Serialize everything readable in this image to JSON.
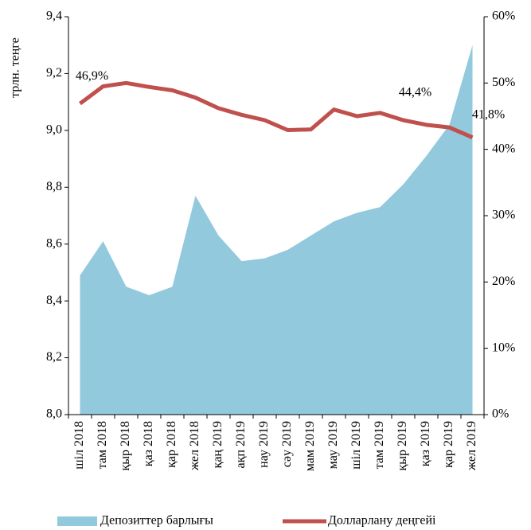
{
  "chart_data": {
    "type": "area_line",
    "y_label": "трлн. теңге",
    "categories": [
      "шіл 2018",
      "там 2018",
      "қыр 2018",
      "қаз 2018",
      "қар 2018",
      "жел 2018",
      "қаң 2019",
      "ақп 2019",
      "нау 2019",
      "сәу 2019",
      "мам 2019",
      "мау 2019",
      "шіл 2019",
      "там 2019",
      "қыр 2019",
      "қаз 2019",
      "қар 2019",
      "жел 2019"
    ],
    "series": [
      {
        "name": "Депозиттер барлығы",
        "color": "#92c9dc",
        "kind": "area",
        "axis": "y",
        "values": [
          8.49,
          8.61,
          8.45,
          8.42,
          8.45,
          8.77,
          8.63,
          8.54,
          8.55,
          8.58,
          8.63,
          8.68,
          8.71,
          8.73,
          8.81,
          8.91,
          9.02,
          9.3
        ]
      },
      {
        "name": "Долларлану деңгейі",
        "color": "#c0504d",
        "kind": "line",
        "axis": "y2",
        "values": [
          46.9,
          49.5,
          50.0,
          49.4,
          48.9,
          47.8,
          46.2,
          45.2,
          44.4,
          42.9,
          43.0,
          46.0,
          45.0,
          45.5,
          44.4,
          43.7,
          43.3,
          41.8
        ],
        "value_labels": [
          "46,9%",
          null,
          null,
          null,
          null,
          null,
          null,
          null,
          null,
          null,
          null,
          null,
          null,
          null,
          "44,4%",
          null,
          null,
          "41,8%"
        ]
      }
    ],
    "ylim": [
      8.0,
      9.4
    ],
    "yticks": [
      {
        "value": 8.0,
        "label": "8,0"
      },
      {
        "value": 8.2,
        "label": "8,2"
      },
      {
        "value": 8.4,
        "label": "8,4"
      },
      {
        "value": 8.6,
        "label": "8,6"
      },
      {
        "value": 8.8,
        "label": "8,8"
      },
      {
        "value": 9.0,
        "label": "9,0"
      },
      {
        "value": 9.2,
        "label": "9,2"
      },
      {
        "value": 9.4,
        "label": "9,4"
      }
    ],
    "y2lim": [
      0,
      60
    ],
    "y2ticks": [
      {
        "value": 0,
        "label": "0%"
      },
      {
        "value": 10,
        "label": "10%"
      },
      {
        "value": 20,
        "label": "20%"
      },
      {
        "value": 30,
        "label": "30%"
      },
      {
        "value": 40,
        "label": "40%"
      },
      {
        "value": 50,
        "label": "50%"
      },
      {
        "value": 60,
        "label": "60%"
      }
    ],
    "legend": "bottom"
  }
}
